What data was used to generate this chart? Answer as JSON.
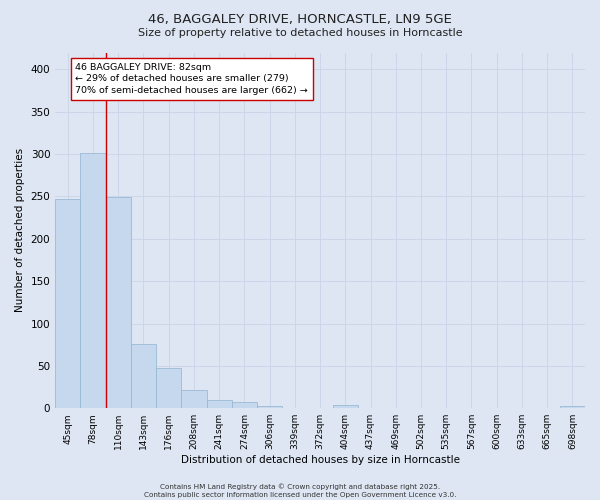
{
  "title1": "46, BAGGALEY DRIVE, HORNCASTLE, LN9 5GE",
  "title2": "Size of property relative to detached houses in Horncastle",
  "xlabel": "Distribution of detached houses by size in Horncastle",
  "ylabel": "Number of detached properties",
  "categories": [
    "45sqm",
    "78sqm",
    "110sqm",
    "143sqm",
    "176sqm",
    "208sqm",
    "241sqm",
    "274sqm",
    "306sqm",
    "339sqm",
    "372sqm",
    "404sqm",
    "437sqm",
    "469sqm",
    "502sqm",
    "535sqm",
    "567sqm",
    "600sqm",
    "633sqm",
    "665sqm",
    "698sqm"
  ],
  "values": [
    247,
    301,
    249,
    76,
    47,
    22,
    10,
    7,
    3,
    0,
    0,
    4,
    0,
    0,
    0,
    0,
    0,
    0,
    0,
    0,
    3
  ],
  "bar_color": "#c5d8ed",
  "bar_edge_color": "#92b4d0",
  "grid_color": "#c8d4e8",
  "background_color": "#dde6f2",
  "vline_color": "#cc0000",
  "annotation_text": "46 BAGGALEY DRIVE: 82sqm\n← 29% of detached houses are smaller (279)\n70% of semi-detached houses are larger (662) →",
  "annotation_box_color": "#ffffff",
  "annotation_box_edge": "#cc0000",
  "footer": "Contains HM Land Registry data © Crown copyright and database right 2025.\nContains public sector information licensed under the Open Government Licence v3.0.",
  "ylim": [
    0,
    420
  ],
  "yticks": [
    0,
    50,
    100,
    150,
    200,
    250,
    300,
    350,
    400
  ],
  "vline_pos": 1.5
}
